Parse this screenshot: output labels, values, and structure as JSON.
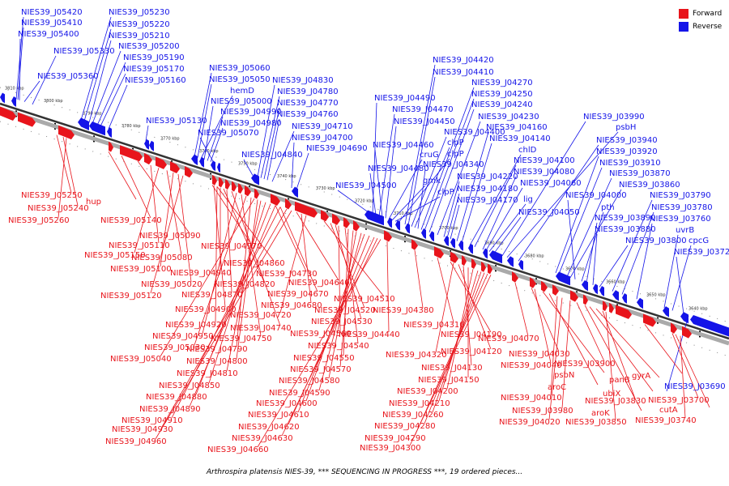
{
  "caption": "Arthrospira platensis NIES-39, *** SEQUENCING IN PROGRESS ***, 19 ordered pieces...",
  "legend": [
    {
      "label": "Forward",
      "color": "#e8141b"
    },
    {
      "label": "Reverse",
      "color": "#1414e8"
    }
  ],
  "colors": {
    "forward": "#e8141b",
    "reverse": "#1414e8",
    "axis": "#555555"
  },
  "axis": {
    "unit": "kbp",
    "ticks": [
      "3810 kbp",
      "3800 kbp",
      "3790 kbp",
      "3780 kbp",
      "3770 kbp",
      "3760 kbp",
      "3750 kbp",
      "3740 kbp",
      "3730 kbp",
      "3720 kbp",
      "3710 kbp",
      "3700 kbp",
      "3690 kbp",
      "3680 kbp",
      "3670 kbp",
      "3660 kbp",
      "3650 kbp",
      "3640 kbp"
    ]
  },
  "reverse_labels": [
    "NIES39_J05420",
    "NIES39_J05410",
    "NIES39_J05400",
    "NIES39_J05330",
    "NIES39_J05360",
    "NIES39_J05230",
    "NIES39_J05220",
    "NIES39_J05210",
    "NIES39_J05200",
    "NIES39_J05190",
    "NIES39_J05170",
    "NIES39_J05160",
    "NIES39_J05130",
    "NIES39_J05060",
    "NIES39_J05050",
    "hemD",
    "NIES39_J05000",
    "NIES39_J04990",
    "NIES39_J04980",
    "NIES39_J05070",
    "NIES39_J04840",
    "NIES39_J04830",
    "NIES39_J04780",
    "NIES39_J04770",
    "NIES39_J04760",
    "NIES39_J04710",
    "NIES39_J04700",
    "NIES39_J04690",
    "NIES39_J04500",
    "NIES39_J04490",
    "NIES39_J04480",
    "NIES39_J04470",
    "NIES39_J04460",
    "NIES39_J04450",
    "cruG",
    "gmk",
    "clpP",
    "clpP",
    "NIES39_J04420",
    "NIES39_J04410",
    "NIES39_J04400",
    "clpP",
    "NIES39_J04340",
    "NIES39_J04270",
    "NIES39_J04250",
    "NIES39_J04240",
    "NIES39_J04230",
    "NIES39_J04220",
    "NIES39_J04180",
    "NIES39_J04170",
    "NIES39_J04160",
    "NIES39_J04140",
    "chlD",
    "NIES39_J04100",
    "NIES39_J04080",
    "NIES39_J04060",
    "lig",
    "NIES39_J04050",
    "NIES39_J03990",
    "psbH",
    "NIES39_J03940",
    "NIES39_J03920",
    "NIES39_J03910",
    "NIES39_J03870",
    "NIES39_J03860",
    "NIES39_J04000",
    "pth",
    "NIES39_J03890",
    "NIES39_J03880",
    "NIES39_J03800",
    "NIES39_J03790",
    "NIES39_J03780",
    "NIES39_J03760",
    "uvrB",
    "cpcG",
    "NIES39_J03720",
    "NIES39_J03690"
  ],
  "forward_labels": [
    "NIES39_J05250",
    "hup",
    "NIES39_J05240",
    "NIES39_J05260",
    "NIES39_J05140",
    "NIES39_J05090",
    "NIES39_J05110",
    "NIES39_J05150",
    "NIES39_J05080",
    "NIES39_J05100",
    "NIES39_J05020",
    "NIES39_J05120",
    "NIES39_J04970",
    "NIES39_J04860",
    "NIES39_J04940",
    "NIES39_J04820",
    "NIES39_J04870",
    "NIES39_J04730",
    "NIES39_J04670",
    "NIES39_J04640",
    "NIES39_J04680",
    "NIES39_J04720",
    "NIES39_J04900",
    "NIES39_J04920",
    "NIES39_J04740",
    "NIES39_J04950",
    "NIES39_J04750",
    "NIES39_J05030",
    "NIES39_J04790",
    "NIES39_J05040",
    "NIES39_J04800",
    "NIES39_J04810",
    "NIES39_J04850",
    "NIES39_J04880",
    "NIES39_J04890",
    "NIES39_J04910",
    "NIES39_J04930",
    "NIES39_J04960",
    "NIES39_J04510",
    "NIES39_J04520",
    "NIES39_J04530",
    "NIES39_J04560",
    "NIES39_J04540",
    "NIES39_J04550",
    "NIES39_J04570",
    "NIES39_J04580",
    "NIES39_J04590",
    "NIES39_J04600",
    "NIES39_J04610",
    "NIES39_J04620",
    "NIES39_J04630",
    "NIES39_J04660",
    "NIES39_J04440",
    "NIES39_J04380",
    "NIES39_J04310",
    "NIES39_J04190",
    "NIES39_J04320",
    "NIES39_J04120",
    "NIES39_J04130",
    "NIES39_J04150",
    "NIES39_J04200",
    "NIES39_J04210",
    "NIES39_J04260",
    "NIES39_J04280",
    "NIES39_J04290",
    "NIES39_J04300",
    "NIES39_J04070",
    "NIES39_J04030",
    "NIES39_J04040",
    "psbN",
    "aroC",
    "NIES39_J04010",
    "NIES39_J04020",
    "NIES39_J03980",
    "NIES39_J03900",
    "aroK",
    "ubiX",
    "panB",
    "NIES39_J03830",
    "NIES39_J03850",
    "gyrA",
    "NIES39_J03700",
    "cutA",
    "NIES39_J03740"
  ]
}
